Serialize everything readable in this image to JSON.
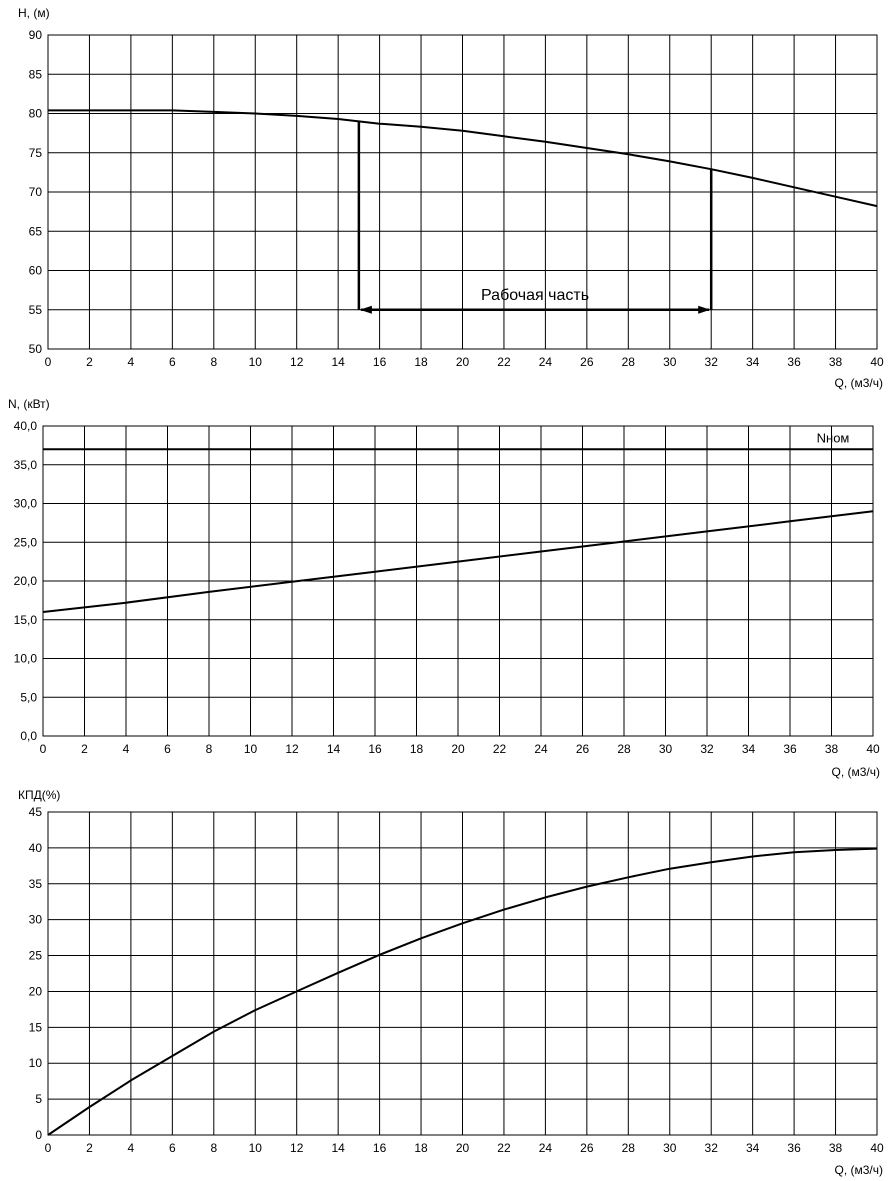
{
  "chart_data": [
    {
      "type": "line",
      "ylabel": "H, (м)",
      "xlabel": "Q, (м3/ч)",
      "xlim": [
        0,
        40
      ],
      "ylim": [
        50,
        90
      ],
      "x_ticks": [
        "0",
        "2",
        "4",
        "6",
        "8",
        "10",
        "12",
        "14",
        "16",
        "18",
        "20",
        "22",
        "24",
        "26",
        "28",
        "30",
        "32",
        "34",
        "36",
        "38",
        "40"
      ],
      "y_ticks": [
        "50",
        "55",
        "60",
        "65",
        "70",
        "75",
        "80",
        "85",
        "90"
      ],
      "grid": true,
      "series": [
        {
          "x": [
            0,
            2,
            4,
            6,
            8,
            10,
            12,
            14,
            16,
            18,
            20,
            22,
            24,
            26,
            28,
            30,
            32,
            34,
            36,
            38,
            40
          ],
          "values": [
            80.4,
            80.4,
            80.4,
            80.4,
            80.2,
            80.0,
            79.7,
            79.3,
            78.7,
            78.3,
            77.8,
            77.1,
            76.4,
            75.6,
            74.8,
            73.9,
            72.9,
            71.8,
            70.6,
            69.4,
            68.2
          ]
        }
      ],
      "annotations": [
        {
          "text": "Рабочая часть",
          "x_from": 15,
          "x_to": 32,
          "y": 55,
          "h_from": 79.1,
          "h_to": 72.9
        }
      ]
    },
    {
      "type": "line",
      "ylabel": "N, (кВт)",
      "xlabel": "Q, (м3/ч)",
      "xlim": [
        0,
        40
      ],
      "ylim": [
        0,
        40
      ],
      "x_ticks": [
        "0",
        "2",
        "4",
        "6",
        "8",
        "10",
        "12",
        "14",
        "16",
        "18",
        "20",
        "22",
        "24",
        "26",
        "28",
        "30",
        "32",
        "34",
        "36",
        "38",
        "40"
      ],
      "y_ticks": [
        "0,0",
        "5,0",
        "10,0",
        "15,0",
        "20,0",
        "25,0",
        "30,0",
        "35,0",
        "40,0"
      ],
      "grid": true,
      "series": [
        {
          "x": [
            0,
            4,
            8,
            12,
            16,
            20,
            24,
            28,
            32,
            36,
            40
          ],
          "values": [
            16.0,
            17.2,
            18.6,
            19.9,
            21.2,
            22.5,
            23.8,
            25.1,
            26.4,
            27.7,
            29.0
          ]
        },
        {
          "name": "Nном",
          "x": [
            0,
            40
          ],
          "values": [
            37.0,
            37.0
          ]
        }
      ]
    },
    {
      "type": "line",
      "ylabel": "КПД(%)",
      "xlabel": "Q, (м3/ч)",
      "xlim": [
        0,
        40
      ],
      "ylim": [
        0,
        45
      ],
      "x_ticks": [
        "0",
        "2",
        "4",
        "6",
        "8",
        "10",
        "12",
        "14",
        "16",
        "18",
        "20",
        "22",
        "24",
        "26",
        "28",
        "30",
        "32",
        "34",
        "36",
        "38",
        "40"
      ],
      "y_ticks": [
        "0",
        "5",
        "10",
        "15",
        "20",
        "25",
        "30",
        "35",
        "40",
        "45"
      ],
      "grid": true,
      "series": [
        {
          "x": [
            0,
            2,
            4,
            6,
            8,
            10,
            12,
            14,
            16,
            18,
            20,
            22,
            24,
            26,
            28,
            30,
            32,
            34,
            36,
            38,
            40
          ],
          "values": [
            0,
            3.9,
            7.6,
            11.0,
            14.4,
            17.4,
            20.0,
            22.6,
            25.1,
            27.4,
            29.5,
            31.4,
            33.1,
            34.6,
            35.9,
            37.1,
            38.0,
            38.8,
            39.4,
            39.7,
            39.9
          ]
        }
      ]
    }
  ]
}
